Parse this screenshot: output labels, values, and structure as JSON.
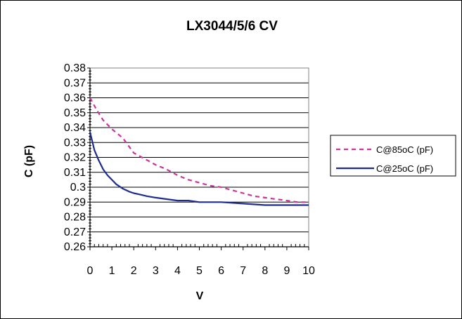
{
  "chart_data": {
    "type": "line",
    "title": "LX3044/5/6 CV",
    "xlabel": "V",
    "ylabel": "C (pF)",
    "xlim": [
      0,
      10
    ],
    "ylim": [
      0.26,
      0.38
    ],
    "x_ticks": [
      "0",
      "1",
      "2",
      "3",
      "4",
      "5",
      "6",
      "7",
      "8",
      "9",
      "10"
    ],
    "y_ticks": [
      "0.26",
      "0.27",
      "0.28",
      "0.29",
      "0.3",
      "0.31",
      "0.32",
      "0.33",
      "0.34",
      "0.35",
      "0.36",
      "0.37",
      "0.38"
    ],
    "grid": "horizontal",
    "legend_position": "right",
    "series": [
      {
        "name": "C@85oC (pF)",
        "color": "#CC3399",
        "style": "dashed",
        "x": [
          0,
          0.3,
          0.6,
          1,
          1.5,
          2,
          2.5,
          3,
          3.5,
          4,
          4.5,
          5,
          5.5,
          6,
          6.5,
          7,
          7.5,
          8,
          8.5,
          9,
          9.5,
          10
        ],
        "y": [
          0.36,
          0.352,
          0.345,
          0.339,
          0.333,
          0.323,
          0.319,
          0.315,
          0.312,
          0.308,
          0.305,
          0.303,
          0.301,
          0.3,
          0.298,
          0.296,
          0.294,
          0.293,
          0.292,
          0.291,
          0.29,
          0.29
        ]
      },
      {
        "name": "C@25oC (pF)",
        "color": "#1F2C8F",
        "style": "solid",
        "x": [
          0,
          0.2,
          0.4,
          0.6,
          0.8,
          1,
          1.2,
          1.5,
          1.8,
          2,
          2.3,
          2.6,
          3,
          3.5,
          4,
          4.5,
          5,
          5.5,
          6,
          7,
          8,
          9,
          10
        ],
        "y": [
          0.337,
          0.325,
          0.318,
          0.312,
          0.308,
          0.305,
          0.302,
          0.299,
          0.297,
          0.296,
          0.295,
          0.294,
          0.293,
          0.292,
          0.291,
          0.291,
          0.29,
          0.29,
          0.29,
          0.289,
          0.288,
          0.288,
          0.288
        ]
      }
    ]
  }
}
